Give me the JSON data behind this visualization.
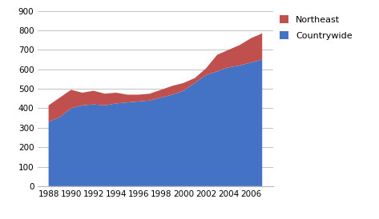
{
  "years": [
    1988,
    1989,
    1990,
    1991,
    1992,
    1993,
    1994,
    1995,
    1996,
    1997,
    1998,
    1999,
    2000,
    2001,
    2002,
    2003,
    2004,
    2005,
    2006,
    2007
  ],
  "countrywide": [
    330,
    355,
    400,
    415,
    420,
    415,
    425,
    430,
    435,
    440,
    455,
    470,
    490,
    530,
    570,
    590,
    610,
    620,
    635,
    650
  ],
  "northeast": [
    85,
    100,
    95,
    65,
    70,
    60,
    55,
    40,
    35,
    35,
    40,
    45,
    40,
    25,
    35,
    85,
    90,
    105,
    125,
    135
  ],
  "countrywide_color": "#4472c4",
  "northeast_color": "#c0504d",
  "ylim": [
    0,
    900
  ],
  "yticks": [
    0,
    100,
    200,
    300,
    400,
    500,
    600,
    700,
    800,
    900
  ],
  "xticks": [
    1988,
    1990,
    1992,
    1994,
    1996,
    1998,
    2000,
    2002,
    2004,
    2006
  ],
  "background_color": "#ffffff",
  "grid_color": "#b8b8b8"
}
